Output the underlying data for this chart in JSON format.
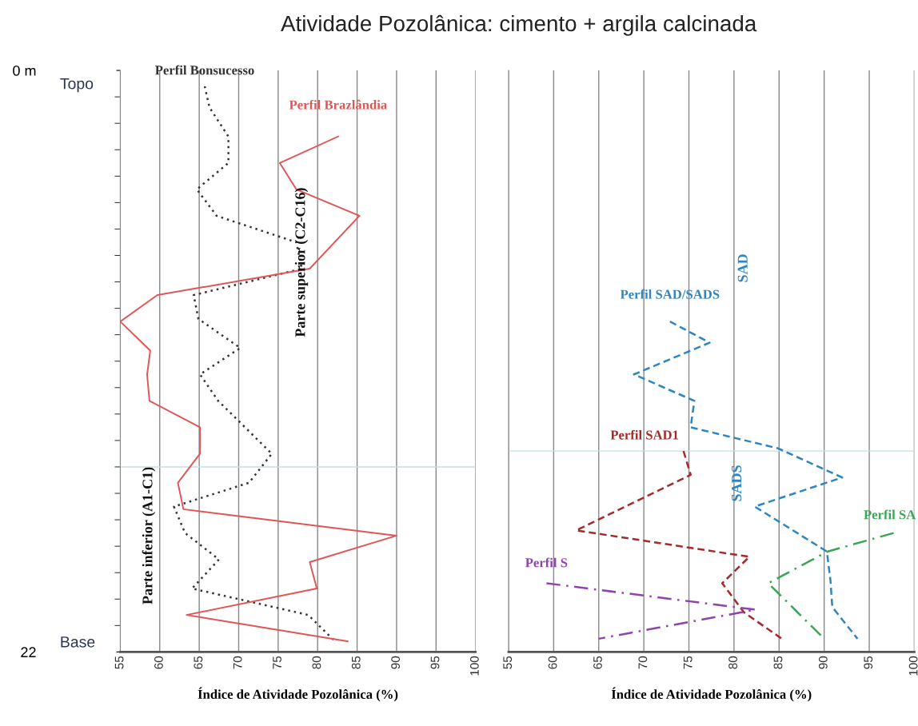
{
  "chart_data": [
    {
      "type": "line",
      "title": "Atividade Pozolânica: cimento + argila calcinada",
      "xlabel": "Índice de Atividade Pozolânica (%)",
      "xlim": [
        55,
        100
      ],
      "xticks": [
        55,
        60,
        65,
        70,
        75,
        80,
        85,
        90,
        95,
        100
      ],
      "ylim": [
        22,
        0
      ],
      "yticks": [
        {
          "value": 0,
          "label": "0 m"
        },
        {
          "value": 22,
          "label": "22"
        }
      ],
      "grid": "x",
      "series": [
        {
          "name": "Perfil Bonsucesso",
          "color": "#333333",
          "line_style": "dotted",
          "x": [
            65.7,
            66.3,
            68.7,
            68.7,
            64.7,
            67.2,
            77.3,
            78.0,
            64.3,
            64.9,
            70.2,
            65.1,
            67.4,
            74.2,
            71.3,
            61.8,
            63.2,
            67.5,
            64.1,
            78.8,
            82.2
          ],
          "values": [
            0.6,
            1.4,
            2.5,
            3.5,
            4.5,
            5.5,
            6.5,
            7.5,
            8.5,
            9.4,
            10.5,
            11.5,
            12.5,
            14.5,
            15.6,
            16.5,
            17.5,
            18.5,
            19.6,
            20.6,
            21.6
          ]
        },
        {
          "name": "Perfil Brazlândia",
          "color": "#e05555",
          "line_style": "solid",
          "x": [
            82.6,
            75.2,
            77.3,
            85.3,
            79.0,
            59.7,
            55.0,
            58.8,
            58.4,
            58.7,
            65.1,
            65.1,
            62.3,
            63.0,
            90.0,
            79.0,
            79.9,
            63.4,
            83.8
          ],
          "values": [
            2.5,
            3.5,
            4.5,
            5.5,
            7.5,
            8.5,
            9.5,
            10.6,
            11.5,
            12.5,
            13.5,
            14.5,
            15.6,
            16.6,
            17.6,
            18.6,
            19.6,
            20.6,
            21.6
          ]
        }
      ],
      "ref_lines": [
        {
          "axis": "y",
          "value": 15.0,
          "color": "#c8dde0"
        }
      ],
      "annotations": [
        "Topo",
        "Base",
        "Parte superior (C2-C16)",
        "Parte inferior (A1-C1)"
      ]
    },
    {
      "type": "line",
      "xlabel": "Índice de Atividade Pozolânica (%)",
      "xlim": [
        55,
        100
      ],
      "xticks": [
        55,
        60,
        65,
        70,
        75,
        80,
        85,
        90,
        95,
        100
      ],
      "ylim": [
        22,
        0
      ],
      "tick_labels": "x",
      "grid": "x",
      "series": [
        {
          "name": "Perfil SAD/SADS",
          "color": "#2e86c1",
          "line_style": "dashed",
          "x": [
            72.9,
            77.3,
            68.9,
            75.6,
            75.2,
            84.9,
            92.0,
            82.3,
            90.3,
            90.7,
            90.9,
            93.7
          ],
          "values": [
            9.5,
            10.3,
            11.5,
            12.5,
            13.5,
            14.3,
            15.4,
            16.5,
            18.2,
            19.3,
            20.3,
            21.5
          ]
        },
        {
          "name": "Perfil SAD1",
          "color": "#a52a2a",
          "line_style": "dashed",
          "x": [
            74.4,
            75.2,
            62.5,
            81.7,
            78.7,
            81.1,
            85.3
          ],
          "values": [
            14.4,
            15.3,
            17.4,
            18.4,
            19.4,
            20.5,
            21.5
          ]
        },
        {
          "name": "Perfil S",
          "color": "#8e44ad",
          "line_style": "dashdot",
          "x": [
            59.2,
            82.4,
            65.0
          ],
          "values": [
            19.4,
            20.4,
            21.5
          ]
        },
        {
          "name": "Perfil SA",
          "color": "#3aa655",
          "line_style": "dashdot",
          "x": [
            97.7,
            90.4,
            83.8,
            90.0
          ],
          "values": [
            17.5,
            18.2,
            19.4,
            21.5
          ]
        }
      ],
      "ref_lines": [
        {
          "axis": "y",
          "value": 14.4,
          "color": "#c8dde0"
        }
      ],
      "annotations": [
        "SAD",
        "SADS"
      ]
    }
  ]
}
